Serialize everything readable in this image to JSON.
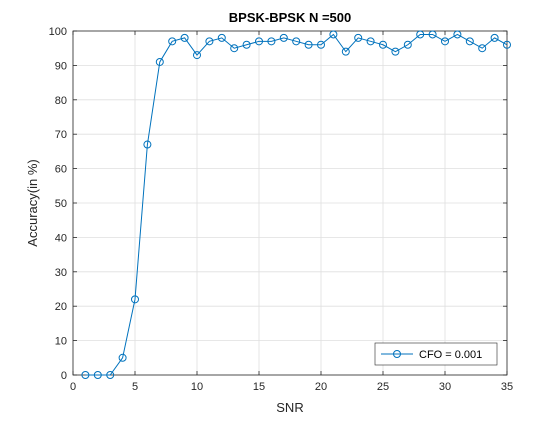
{
  "chart_data": {
    "type": "line",
    "title": "BPSK-BPSK N =500",
    "xlabel": "SNR",
    "ylabel": "Accuracy(in %)",
    "xlim": [
      0,
      35
    ],
    "ylim": [
      0,
      100
    ],
    "xticks": [
      0,
      5,
      10,
      15,
      20,
      25,
      30,
      35
    ],
    "yticks": [
      0,
      10,
      20,
      30,
      40,
      50,
      60,
      70,
      80,
      90,
      100
    ],
    "grid": true,
    "legend_position": "bottom-right",
    "marker": "circle",
    "color": "#0072BD",
    "series": [
      {
        "name": "CFO = 0.001",
        "x": [
          1,
          2,
          3,
          4,
          5,
          6,
          7,
          8,
          9,
          10,
          11,
          12,
          13,
          14,
          15,
          16,
          17,
          18,
          19,
          20,
          21,
          22,
          23,
          24,
          25,
          26,
          27,
          28,
          29,
          30,
          31,
          32,
          33,
          34,
          35
        ],
        "y": [
          0,
          0,
          0,
          5,
          22,
          67,
          91,
          97,
          98,
          93,
          97,
          98,
          95,
          96,
          97,
          97,
          98,
          97,
          96,
          96,
          99,
          94,
          98,
          97,
          96,
          94,
          96,
          99,
          99,
          97,
          99,
          97,
          95,
          98,
          96
        ]
      }
    ]
  }
}
